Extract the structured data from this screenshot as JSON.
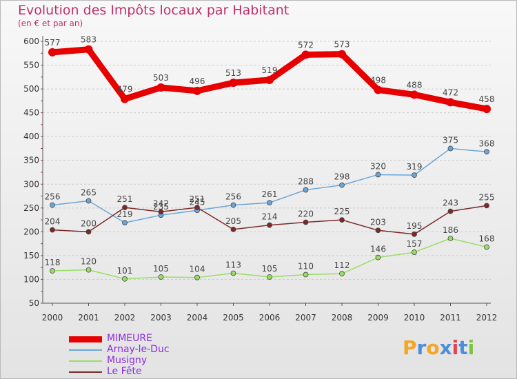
{
  "header": {
    "title": "Evolution des Impôts locaux par Habitant",
    "subtitle": "(en € et par an)"
  },
  "logo": {
    "text": "Proxiti"
  },
  "colors": {
    "title": "#c0306a",
    "legend_text": "#8a2be2",
    "axis": "#333333",
    "grid": "#cccccc",
    "logo_letters": [
      "#f5a623",
      "#4a90d9",
      "#f5a623",
      "#4a90d9",
      "#e8424f",
      "#4a90d9",
      "#7cc242"
    ]
  },
  "chart_data": {
    "type": "line",
    "title": "Evolution des Impôts locaux par Habitant",
    "subtitle": "(en € et par an)",
    "xlabel": "",
    "ylabel": "",
    "x": [
      "2000",
      "2001",
      "2002",
      "2003",
      "2004",
      "2005",
      "2006",
      "2007",
      "2008",
      "2009",
      "2010",
      "2011",
      "2012"
    ],
    "ylim": [
      50,
      600
    ],
    "yticks": [
      50,
      100,
      150,
      200,
      250,
      300,
      350,
      400,
      450,
      500,
      550,
      600
    ],
    "grid": "horizontal dashed",
    "legend_position": "bottom-left",
    "series": [
      {
        "name": "MIMEURE",
        "color": "#e60000",
        "width": "thick",
        "values": [
          577,
          583,
          479,
          503,
          496,
          513,
          519,
          572,
          573,
          498,
          488,
          472,
          458
        ]
      },
      {
        "name": "Arnay-le-Duc",
        "color": "#6aa6d8",
        "width": "thin",
        "values": [
          256,
          265,
          219,
          235,
          245,
          256,
          261,
          288,
          298,
          320,
          319,
          375,
          368
        ]
      },
      {
        "name": "Musigny",
        "color": "#99dd66",
        "width": "thin",
        "values": [
          118,
          120,
          101,
          105,
          104,
          113,
          105,
          110,
          112,
          146,
          157,
          186,
          168
        ]
      },
      {
        "name": "Le Fête",
        "color": "#7a2a2a",
        "width": "thin",
        "values": [
          204,
          200,
          251,
          242,
          251,
          205,
          214,
          220,
          225,
          203,
          195,
          243,
          255
        ]
      }
    ]
  }
}
